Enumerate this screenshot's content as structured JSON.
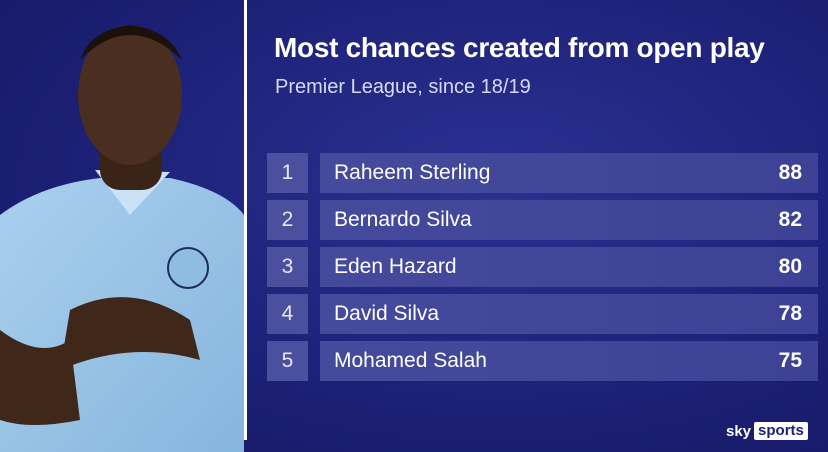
{
  "header": {
    "title": "Most chances created from open play",
    "subtitle": "Premier League, since 18/19"
  },
  "table": {
    "rows": [
      [
        1,
        "Raheem Sterling",
        88
      ],
      [
        2,
        "Bernardo Silva",
        82
      ],
      [
        3,
        "Eden Hazard",
        80
      ],
      [
        4,
        "David Silva",
        78
      ],
      [
        5,
        "Mohamed Salah",
        75
      ]
    ]
  },
  "logo": {
    "brand": "sky",
    "product": "sports"
  }
}
